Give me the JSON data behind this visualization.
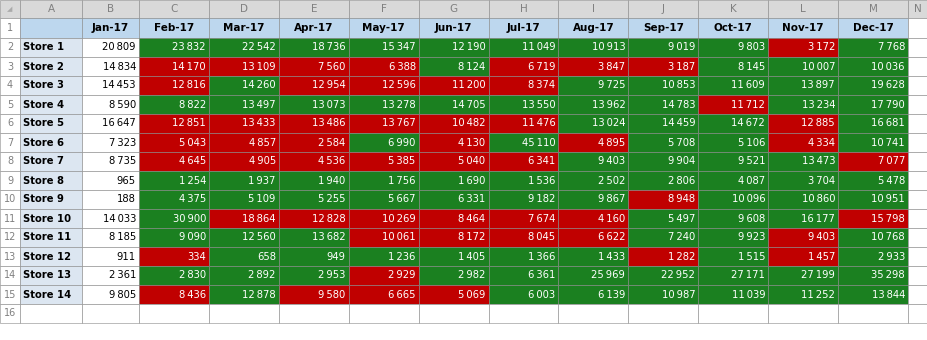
{
  "col_letters": [
    "",
    "A",
    "B",
    "C",
    "D",
    "E",
    "F",
    "G",
    "H",
    "I",
    "J",
    "K",
    "L",
    "M",
    "N"
  ],
  "col_headers": [
    "Jan-17",
    "Feb-17",
    "Mar-17",
    "Apr-17",
    "May-17",
    "Jun-17",
    "Jul-17",
    "Aug-17",
    "Sep-17",
    "Oct-17",
    "Nov-17",
    "Dec-17"
  ],
  "row_labels": [
    "Store 1",
    "Store 2",
    "Store 3",
    "Store 4",
    "Store 5",
    "Store 6",
    "Store 7",
    "Store 8",
    "Store 9",
    "Store 10",
    "Store 11",
    "Store 12",
    "Store 13",
    "Store 14"
  ],
  "jan_values": [
    20809,
    14834,
    14453,
    8590,
    16647,
    7323,
    8735,
    965,
    188,
    14033,
    8185,
    911,
    2361,
    9805
  ],
  "data": [
    [
      23832,
      22542,
      18736,
      15347,
      12190,
      11049,
      10913,
      9019,
      9803,
      3172,
      7768
    ],
    [
      14170,
      13109,
      7560,
      6388,
      8124,
      6719,
      3847,
      3187,
      8145,
      10007,
      10036
    ],
    [
      12816,
      14260,
      12954,
      12596,
      11200,
      8374,
      9725,
      10853,
      11609,
      13897,
      19628
    ],
    [
      8822,
      13497,
      13073,
      13278,
      14705,
      13550,
      13962,
      14783,
      11712,
      13234,
      17790
    ],
    [
      12851,
      13433,
      13486,
      13767,
      10482,
      11476,
      13024,
      14459,
      14672,
      12885,
      16681
    ],
    [
      5043,
      4857,
      2584,
      6990,
      4130,
      45110,
      4895,
      5708,
      5106,
      4334,
      10741
    ],
    [
      4645,
      4905,
      4536,
      5385,
      5040,
      6341,
      9403,
      9904,
      9521,
      13473,
      7077
    ],
    [
      1254,
      1937,
      1940,
      1756,
      1690,
      1536,
      2502,
      2806,
      4087,
      3704,
      5478
    ],
    [
      4375,
      5109,
      5255,
      5667,
      6331,
      9182,
      9867,
      8948,
      10096,
      10860,
      10951
    ],
    [
      30900,
      18864,
      12828,
      10269,
      8464,
      7674,
      4160,
      5497,
      9608,
      16177,
      15798
    ],
    [
      9090,
      12560,
      13682,
      10061,
      8172,
      8045,
      6622,
      7240,
      9923,
      9403,
      10768
    ],
    [
      334,
      658,
      949,
      1236,
      1405,
      1366,
      1433,
      1282,
      1515,
      1457,
      2933
    ],
    [
      2830,
      2892,
      2953,
      2929,
      2982,
      6361,
      25969,
      22952,
      27171,
      27199,
      35298
    ],
    [
      8436,
      12878,
      9580,
      6665,
      5069,
      6003,
      6139,
      10987,
      11039,
      11252,
      13844
    ]
  ],
  "colors": [
    [
      "G",
      "G",
      "G",
      "G",
      "G",
      "G",
      "G",
      "G",
      "G",
      "R",
      "G"
    ],
    [
      "R",
      "R",
      "R",
      "R",
      "G",
      "R",
      "R",
      "R",
      "G",
      "G",
      "G"
    ],
    [
      "R",
      "G",
      "R",
      "R",
      "R",
      "R",
      "G",
      "G",
      "G",
      "G",
      "G"
    ],
    [
      "G",
      "G",
      "G",
      "G",
      "G",
      "G",
      "G",
      "G",
      "R",
      "G",
      "G"
    ],
    [
      "R",
      "R",
      "R",
      "R",
      "R",
      "R",
      "G",
      "G",
      "G",
      "R",
      "G"
    ],
    [
      "R",
      "R",
      "R",
      "G",
      "R",
      "G",
      "R",
      "G",
      "G",
      "R",
      "G"
    ],
    [
      "R",
      "R",
      "R",
      "R",
      "R",
      "R",
      "G",
      "G",
      "G",
      "G",
      "R"
    ],
    [
      "G",
      "G",
      "G",
      "G",
      "G",
      "G",
      "G",
      "G",
      "G",
      "G",
      "G"
    ],
    [
      "G",
      "G",
      "G",
      "G",
      "G",
      "G",
      "G",
      "R",
      "G",
      "G",
      "G"
    ],
    [
      "G",
      "R",
      "R",
      "R",
      "R",
      "R",
      "R",
      "G",
      "G",
      "G",
      "R"
    ],
    [
      "G",
      "G",
      "G",
      "R",
      "R",
      "R",
      "R",
      "G",
      "G",
      "R",
      "G"
    ],
    [
      "R",
      "G",
      "G",
      "G",
      "G",
      "G",
      "G",
      "R",
      "G",
      "R",
      "G"
    ],
    [
      "G",
      "G",
      "G",
      "R",
      "G",
      "G",
      "G",
      "G",
      "G",
      "G",
      "G"
    ],
    [
      "R",
      "G",
      "R",
      "R",
      "R",
      "G",
      "G",
      "G",
      "G",
      "G",
      "G"
    ]
  ],
  "green_hex": "#1B8020",
  "red_hex": "#C00000",
  "header_blue": "#BDD7EE",
  "col_letter_bg": "#D9D9D9",
  "store_col_bg": "#DCE6F1",
  "white": "#FFFFFF",
  "border_color": "#999999",
  "text_dark": "#000000",
  "text_gray": "#808080",
  "font_size_header": 7.5,
  "font_size_data": 7.2,
  "font_size_letters": 7.5
}
